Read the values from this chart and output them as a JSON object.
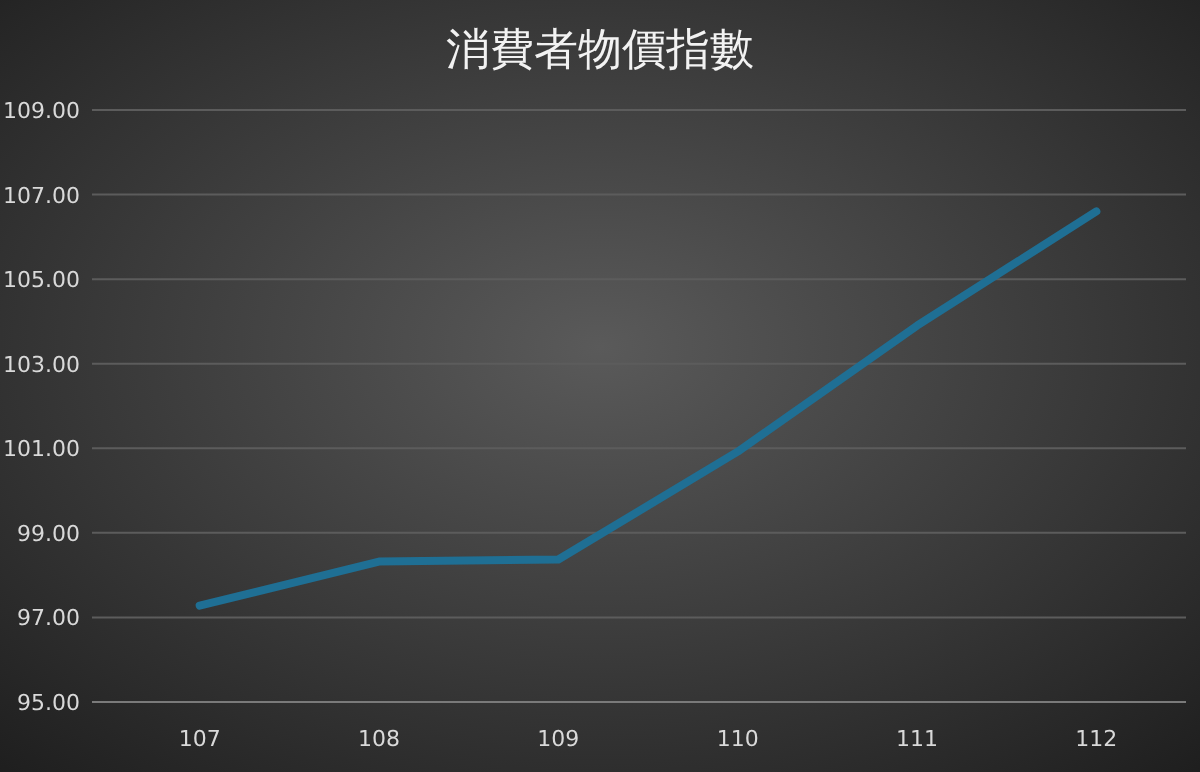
{
  "chart_data": {
    "type": "line",
    "title": "消費者物價指數",
    "categories": [
      "107",
      "108",
      "109",
      "110",
      "111",
      "112"
    ],
    "series": [
      {
        "color": "#1f6f94",
        "values": [
          97.28,
          98.32,
          98.37,
          100.92,
          103.9,
          106.6
        ]
      }
    ],
    "ylim": [
      95,
      109
    ],
    "yticks": [
      {
        "value": 95,
        "label": "95.00"
      },
      {
        "value": 97,
        "label": "97.00"
      },
      {
        "value": 99,
        "label": "99.00"
      },
      {
        "value": 101,
        "label": "101.00"
      },
      {
        "value": 103,
        "label": "103.00"
      },
      {
        "value": 105,
        "label": "105.00"
      },
      {
        "value": 107,
        "label": "107.00"
      },
      {
        "value": 109,
        "label": "109.00"
      }
    ],
    "grid": "y",
    "marker": "none",
    "line_style": "solid"
  }
}
